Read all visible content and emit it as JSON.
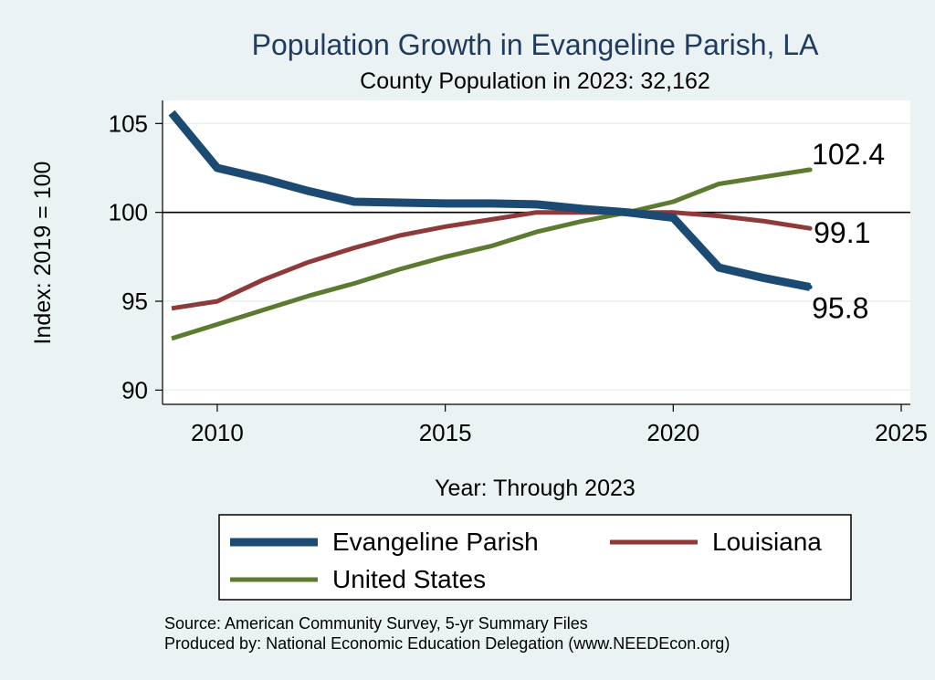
{
  "chart_data": {
    "type": "line",
    "title": "Population Growth in Evangeline Parish, LA",
    "subtitle": "County Population in 2023: 32,162",
    "xlabel": "Year: Through 2023",
    "ylabel": "Index: 2019 = 100",
    "xlim": [
      2008.8,
      2025.2
    ],
    "ylim": [
      89.2,
      106.3
    ],
    "x_ticks": [
      2010,
      2015,
      2020,
      2025
    ],
    "x_tick_labels": [
      "2010",
      "2015",
      "2020",
      "2025"
    ],
    "y_ticks": [
      90,
      95,
      100,
      105
    ],
    "y_tick_labels": [
      "90",
      "95",
      "100",
      "105"
    ],
    "reference_line": 100,
    "x": [
      2009,
      2010,
      2011,
      2012,
      2013,
      2014,
      2015,
      2016,
      2017,
      2018,
      2019,
      2020,
      2021,
      2022,
      2023
    ],
    "series": [
      {
        "name": "Evangeline Parish",
        "color": "#1b4a72",
        "values": [
          105.6,
          102.5,
          101.9,
          101.2,
          100.6,
          100.55,
          100.5,
          100.5,
          100.45,
          100.2,
          100.0,
          99.7,
          96.9,
          96.3,
          95.8
        ],
        "end_label": "95.8"
      },
      {
        "name": "Louisiana",
        "color": "#8e3a3a",
        "values": [
          94.6,
          95.0,
          96.2,
          97.2,
          98.0,
          98.7,
          99.2,
          99.6,
          100.0,
          100.0,
          100.0,
          100.0,
          99.8,
          99.5,
          99.1
        ],
        "end_label": "99.1"
      },
      {
        "name": "United States",
        "color": "#5c7b30",
        "values": [
          92.9,
          93.7,
          94.5,
          95.3,
          96.0,
          96.8,
          97.5,
          98.1,
          98.9,
          99.5,
          100.0,
          100.6,
          101.6,
          102.0,
          102.4
        ],
        "end_label": "102.4"
      }
    ],
    "legend": [
      "Evangeline Parish",
      "Louisiana",
      "United States"
    ],
    "legend_placement": "bottom",
    "source_line": "Source: American Community Survey, 5-yr Summary Files",
    "produced_line": "Produced by: National Economic Education Delegation (www.NEEDEcon.org)"
  }
}
